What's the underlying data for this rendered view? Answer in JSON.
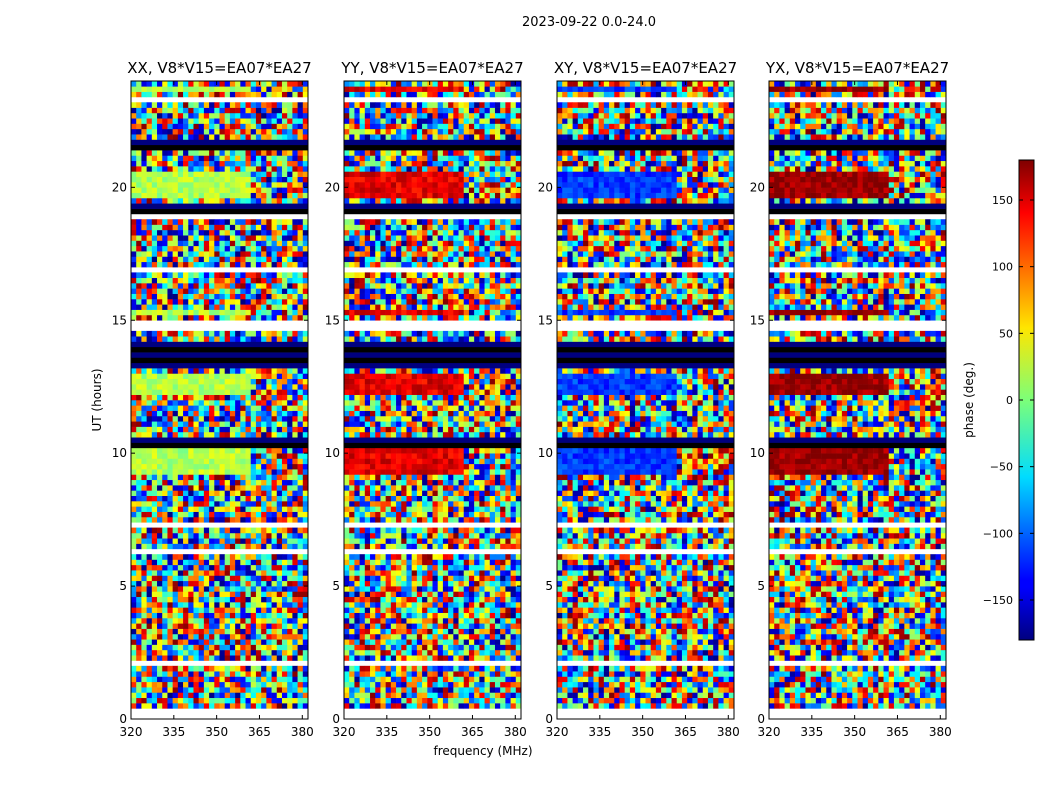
{
  "figure": {
    "suptitle": "2023-09-22 0.0-24.0"
  },
  "chart_data": {
    "type": "heatmap",
    "xlabel": "frequency (MHz)",
    "ylabel": "UT (hours)",
    "xlim": [
      320,
      382
    ],
    "ylim": [
      0,
      24
    ],
    "xticks": [
      320,
      335,
      350,
      365,
      380
    ],
    "yticks": [
      0,
      5,
      10,
      15,
      20
    ],
    "panels": [
      {
        "title": "XX, V8*V15=EA07*EA27"
      },
      {
        "title": "YY, V8*V15=EA07*EA27"
      },
      {
        "title": "XY, V8*V15=EA07*EA27"
      },
      {
        "title": "YX, V8*V15=EA07*EA27"
      }
    ],
    "colorbar": {
      "label": "phase (deg.)",
      "range": [
        -180,
        180
      ],
      "ticks": [
        -150,
        -100,
        -50,
        0,
        50,
        100,
        150
      ],
      "colormap": "jet"
    }
  }
}
